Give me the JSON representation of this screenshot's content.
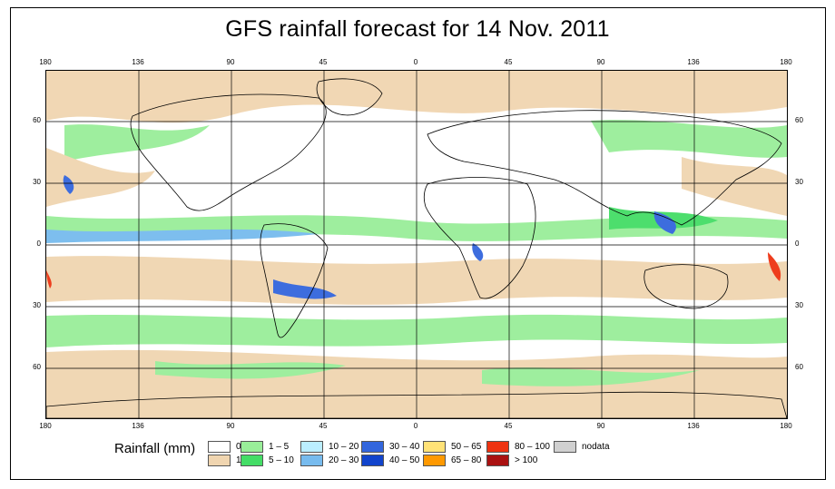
{
  "title": "GFS rainfall forecast for 14 Nov. 2011",
  "axes": {
    "top": [
      "180",
      "136",
      "90",
      "45",
      "0",
      "45",
      "90",
      "136",
      "180"
    ],
    "bottom": [
      "180",
      "136",
      "90",
      "45",
      "0",
      "45",
      "90",
      "136",
      "180"
    ],
    "left": [
      "60",
      "30",
      "0",
      "30",
      "60"
    ],
    "right": [
      "60",
      "30",
      "0",
      "30",
      "60"
    ]
  },
  "legend": {
    "title": "Rainfall (mm)",
    "items": [
      {
        "label": "0",
        "color": "#ffffff"
      },
      {
        "label": "1",
        "color": "#f0d5b0"
      },
      {
        "label": "1 – 5",
        "color": "#99ee99"
      },
      {
        "label": "5 – 10",
        "color": "#44dd66"
      },
      {
        "label": "10 – 20",
        "color": "#bbeeff"
      },
      {
        "label": "20 – 30",
        "color": "#77bbee"
      },
      {
        "label": "30 – 40",
        "color": "#3366dd"
      },
      {
        "label": "40 – 50",
        "color": "#1144cc"
      },
      {
        "label": "50 – 65",
        "color": "#ffe277"
      },
      {
        "label": "65 – 80",
        "color": "#ff9900"
      },
      {
        "label": "80 – 100",
        "color": "#ee3311"
      },
      {
        "label": "> 100",
        "color": "#aa1111"
      },
      {
        "label": "nodata",
        "color": "#d0d0d0"
      }
    ]
  }
}
